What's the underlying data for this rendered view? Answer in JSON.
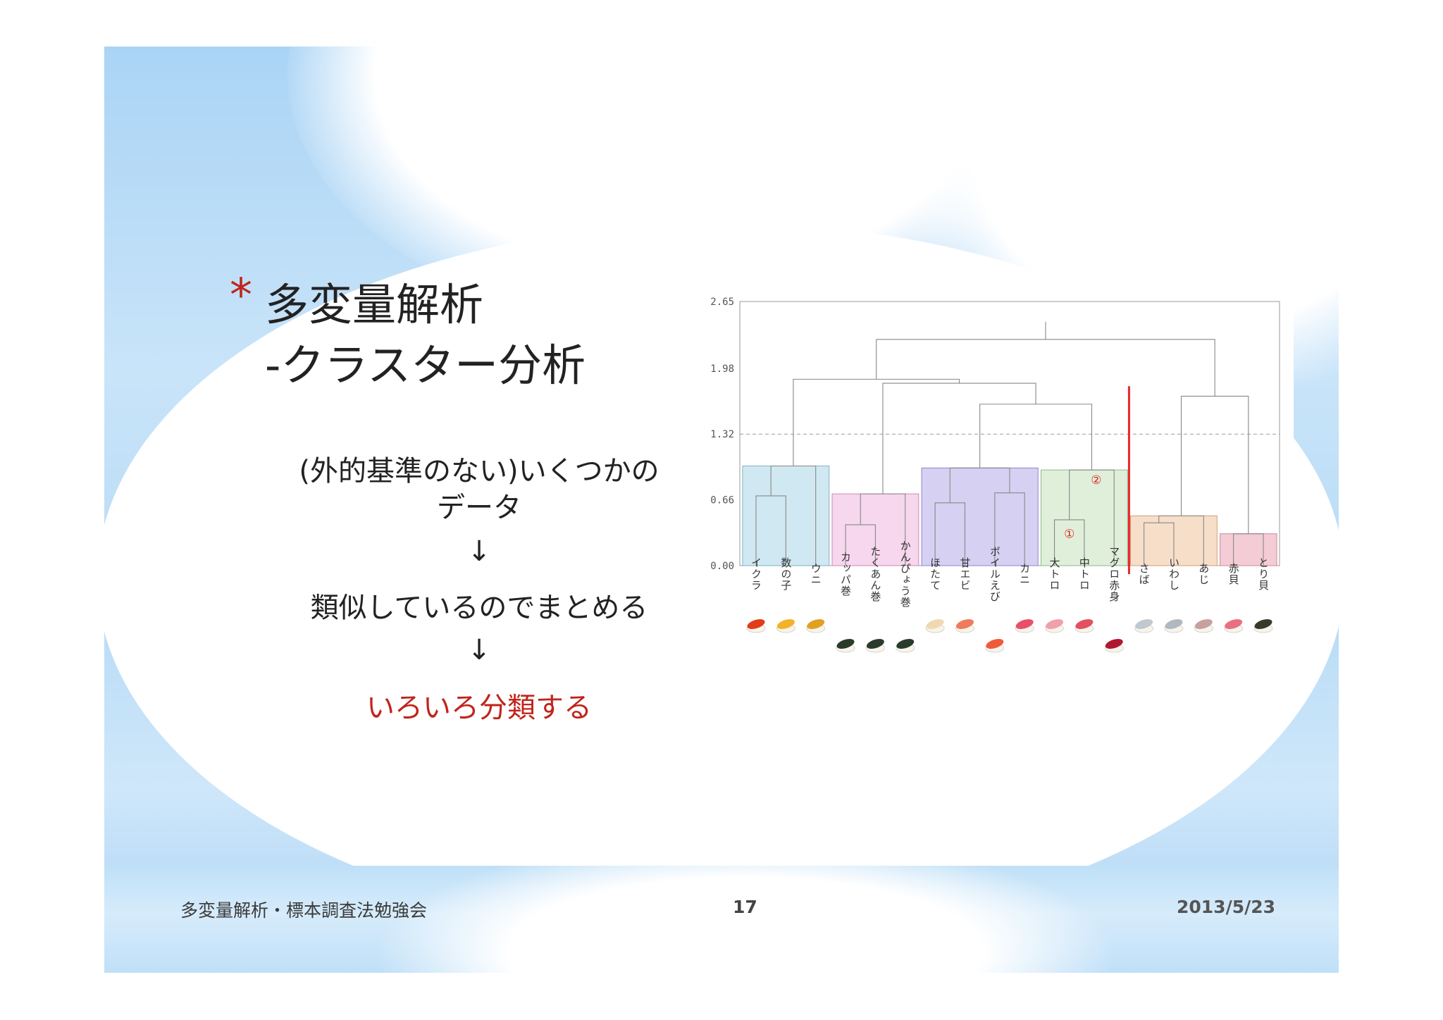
{
  "slide": {
    "title_line1": "多変量解析",
    "title_line2": "-クラスター分析",
    "body_line1": "(外的基準のない)いくつかの",
    "body_line2": "データ",
    "arrow1": "↓",
    "body_line3": "類似しているのでまとめる",
    "arrow2": "↓",
    "highlight": "いろいろ分類する",
    "footer_left": "多変量解析・標本調査法勉強会",
    "page_number": "17",
    "footer_date": "2013/5/23"
  },
  "colors": {
    "accent_red": "#c0241c",
    "cluster_blue": "#c8e4ef",
    "cluster_pink": "#f4d0ea",
    "cluster_purple": "#cfc8f0",
    "cluster_green": "#d9ecd4",
    "cluster_tan": "#f4d8c0",
    "cluster_rose": "#f2c3cf",
    "cut_line": "#e8272b"
  },
  "chart_data": {
    "type": "dendrogram",
    "ylim": [
      0,
      2.65
    ],
    "y_ticks": [
      "2.65",
      "1.98",
      "1.32",
      "0.66",
      "0.00"
    ],
    "threshold": 1.32,
    "leaves": [
      "イクラ",
      "数の子",
      "ウニ",
      "カッパ巻",
      "たくあん巻",
      "かんぴょう巻",
      "ほたて",
      "甘エビ",
      "ボイルえび",
      "カニ",
      "大トロ",
      "中トロ",
      "マグロ赤身",
      "さば",
      "いわし",
      "あじ",
      "赤貝",
      "とり貝"
    ],
    "merges": [
      {
        "a": 0,
        "b": 1,
        "height": 0.7
      },
      {
        "a": 18,
        "b": 2,
        "height": 1.0
      },
      {
        "a": 3,
        "b": 4,
        "height": 0.41
      },
      {
        "a": 20,
        "b": 5,
        "height": 0.72
      },
      {
        "a": 6,
        "b": 7,
        "height": 0.63
      },
      {
        "a": 8,
        "b": 9,
        "height": 0.73
      },
      {
        "a": 22,
        "b": 23,
        "height": 0.98
      },
      {
        "a": 10,
        "b": 11,
        "height": 0.46
      },
      {
        "a": 25,
        "b": 12,
        "height": 0.96
      },
      {
        "a": 24,
        "b": 26,
        "height": 1.62
      },
      {
        "a": 21,
        "b": 27,
        "height": 1.83
      },
      {
        "a": 19,
        "b": 28,
        "height": 1.87
      },
      {
        "a": 13,
        "b": 14,
        "height": 0.43
      },
      {
        "a": 30,
        "b": 15,
        "height": 0.5
      },
      {
        "a": 16,
        "b": 17,
        "height": 0.32
      },
      {
        "a": 31,
        "b": 32,
        "height": 1.7
      },
      {
        "a": 29,
        "b": 33,
        "height": 2.27
      }
    ],
    "boxes": [
      {
        "from": 0,
        "to": 2,
        "height": 1.0,
        "color": "#c8e4ef",
        "stroke": "#7fb3cc"
      },
      {
        "from": 3,
        "to": 5,
        "height": 0.72,
        "color": "#f4d0ea",
        "stroke": "#d08ab8"
      },
      {
        "from": 6,
        "to": 9,
        "height": 0.98,
        "color": "#cfc8f0",
        "stroke": "#8e84cf"
      },
      {
        "from": 10,
        "to": 12,
        "height": 0.96,
        "color": "#d9ecd4",
        "stroke": "#8fb883"
      },
      {
        "from": 13,
        "to": 15,
        "height": 0.5,
        "color": "#f4d8c0",
        "stroke": "#cfa27a"
      },
      {
        "from": 16,
        "to": 17,
        "height": 0.32,
        "color": "#f2c3cf",
        "stroke": "#cf8797"
      }
    ],
    "annotations": [
      {
        "label": "①",
        "leaf": 10.5,
        "height": 0.28
      },
      {
        "label": "②",
        "leaf": 11.4,
        "height": 0.82
      }
    ],
    "cut_between": [
      12,
      13
    ]
  }
}
